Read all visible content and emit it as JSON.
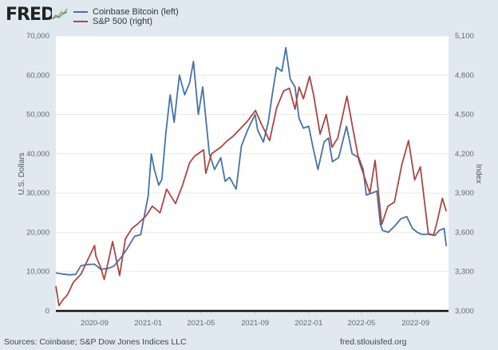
{
  "header": {
    "logo_text": "FRED",
    "logo_icon": "chart-line-icon"
  },
  "legend": {
    "items": [
      {
        "label": "Coinbase Bitcoin (left)",
        "color": "#4572a7"
      },
      {
        "label": "S&P 500 (right)",
        "color": "#aa4643"
      }
    ]
  },
  "footer": {
    "sources": "Sources: Coinbase; S&P Dow Jones Indices LLC",
    "site": "fred.stlouisfed.org"
  },
  "chart_data": {
    "type": "line",
    "title": "",
    "xlabel": "",
    "ylabel_left": "U.S. Dollars",
    "ylabel_right": "Index",
    "x_range": [
      "2020-06-05",
      "2022-11-15"
    ],
    "x_ticks": [
      "2020-09",
      "2021-01",
      "2021-05",
      "2021-09",
      "2022-01",
      "2022-05",
      "2022-09"
    ],
    "y_left": {
      "range": [
        0,
        70000
      ],
      "ticks": [
        "0",
        "10,000",
        "20,000",
        "30,000",
        "40,000",
        "50,000",
        "60,000",
        "70,000"
      ]
    },
    "y_right": {
      "range": [
        3000,
        5100
      ],
      "ticks": [
        "3,000",
        "3,300",
        "3,600",
        "3,900",
        "4,200",
        "4,500",
        "4,800",
        "5,100"
      ]
    },
    "grid": true,
    "legend_position": "top-left",
    "series": [
      {
        "name": "Coinbase Bitcoin (left)",
        "axis": "left",
        "color": "#4572a7",
        "x": [
          "2020-06-05",
          "2020-06-20",
          "2020-07-05",
          "2020-07-20",
          "2020-08-01",
          "2020-08-15",
          "2020-09-01",
          "2020-09-15",
          "2020-10-01",
          "2020-10-15",
          "2020-11-01",
          "2020-11-15",
          "2020-12-01",
          "2020-12-15",
          "2021-01-01",
          "2021-01-08",
          "2021-01-15",
          "2021-01-25",
          "2021-02-01",
          "2021-02-10",
          "2021-02-20",
          "2021-03-01",
          "2021-03-13",
          "2021-03-25",
          "2021-04-05",
          "2021-04-14",
          "2021-04-25",
          "2021-05-05",
          "2021-05-12",
          "2021-05-20",
          "2021-06-01",
          "2021-06-15",
          "2021-06-25",
          "2021-07-05",
          "2021-07-20",
          "2021-08-01",
          "2021-08-15",
          "2021-09-01",
          "2021-09-07",
          "2021-09-20",
          "2021-10-01",
          "2021-10-10",
          "2021-10-20",
          "2021-11-01",
          "2021-11-10",
          "2021-11-20",
          "2021-12-01",
          "2021-12-10",
          "2021-12-20",
          "2022-01-01",
          "2022-01-10",
          "2022-01-22",
          "2022-02-05",
          "2022-02-15",
          "2022-02-24",
          "2022-03-10",
          "2022-03-28",
          "2022-04-10",
          "2022-04-25",
          "2022-05-05",
          "2022-05-12",
          "2022-05-25",
          "2022-06-05",
          "2022-06-13",
          "2022-06-18",
          "2022-07-01",
          "2022-07-15",
          "2022-07-30",
          "2022-08-12",
          "2022-08-25",
          "2022-09-05",
          "2022-09-15",
          "2022-10-01",
          "2022-10-15",
          "2022-10-25",
          "2022-11-05",
          "2022-11-10"
        ],
        "values": [
          9700,
          9400,
          9200,
          9300,
          11500,
          11800,
          11900,
          10600,
          10800,
          11400,
          13700,
          16000,
          19000,
          19400,
          29300,
          40000,
          36000,
          32000,
          33500,
          45000,
          55000,
          48000,
          60000,
          55000,
          58000,
          63500,
          50000,
          57000,
          49000,
          40000,
          36000,
          39000,
          33000,
          34000,
          31000,
          42000,
          46000,
          50000,
          46000,
          43000,
          48000,
          55000,
          62000,
          61000,
          67000,
          59000,
          57000,
          49000,
          46500,
          47000,
          42000,
          36000,
          43000,
          44000,
          38000,
          39000,
          47000,
          40000,
          39000,
          36000,
          29500,
          30000,
          30500,
          22000,
          20500,
          20000,
          21500,
          23500,
          24000,
          21000,
          20000,
          19500,
          19500,
          19200,
          20500,
          21000,
          16500
        ]
      },
      {
        "name": "S&P 500 (right)",
        "axis": "right",
        "color": "#aa4643",
        "x": [
          "2020-06-05",
          "2020-06-12",
          "2020-06-22",
          "2020-07-01",
          "2020-07-15",
          "2020-08-01",
          "2020-08-15",
          "2020-09-01",
          "2020-09-04",
          "2020-09-15",
          "2020-09-23",
          "2020-10-01",
          "2020-10-12",
          "2020-10-28",
          "2020-11-10",
          "2020-11-25",
          "2020-12-10",
          "2020-12-28",
          "2021-01-10",
          "2021-01-28",
          "2021-02-12",
          "2021-03-04",
          "2021-03-20",
          "2021-04-05",
          "2021-04-16",
          "2021-05-07",
          "2021-05-12",
          "2021-05-25",
          "2021-06-15",
          "2021-06-30",
          "2021-07-15",
          "2021-08-01",
          "2021-08-15",
          "2021-09-02",
          "2021-09-15",
          "2021-10-04",
          "2021-10-20",
          "2021-11-05",
          "2021-11-18",
          "2021-12-01",
          "2021-12-10",
          "2021-12-20",
          "2022-01-03",
          "2022-01-12",
          "2022-01-27",
          "2022-02-10",
          "2022-02-23",
          "2022-03-08",
          "2022-03-29",
          "2022-04-10",
          "2022-04-25",
          "2022-05-10",
          "2022-05-20",
          "2022-06-01",
          "2022-06-16",
          "2022-06-30",
          "2022-07-15",
          "2022-08-01",
          "2022-08-16",
          "2022-08-30",
          "2022-09-12",
          "2022-09-30",
          "2022-10-12",
          "2022-10-20",
          "2022-11-01",
          "2022-11-10"
        ],
        "values": [
          3190,
          3040,
          3090,
          3120,
          3220,
          3280,
          3380,
          3500,
          3420,
          3330,
          3240,
          3360,
          3530,
          3270,
          3550,
          3630,
          3670,
          3730,
          3800,
          3750,
          3930,
          3820,
          3960,
          4130,
          4180,
          4230,
          4050,
          4200,
          4250,
          4300,
          4340,
          4400,
          4450,
          4530,
          4430,
          4300,
          4550,
          4680,
          4700,
          4540,
          4710,
          4620,
          4790,
          4650,
          4350,
          4500,
          4250,
          4320,
          4640,
          4420,
          4150,
          4000,
          3900,
          4150,
          3660,
          3800,
          3830,
          4120,
          4300,
          4000,
          4100,
          3590,
          3580,
          3680,
          3860,
          3760
        ]
      }
    ]
  }
}
